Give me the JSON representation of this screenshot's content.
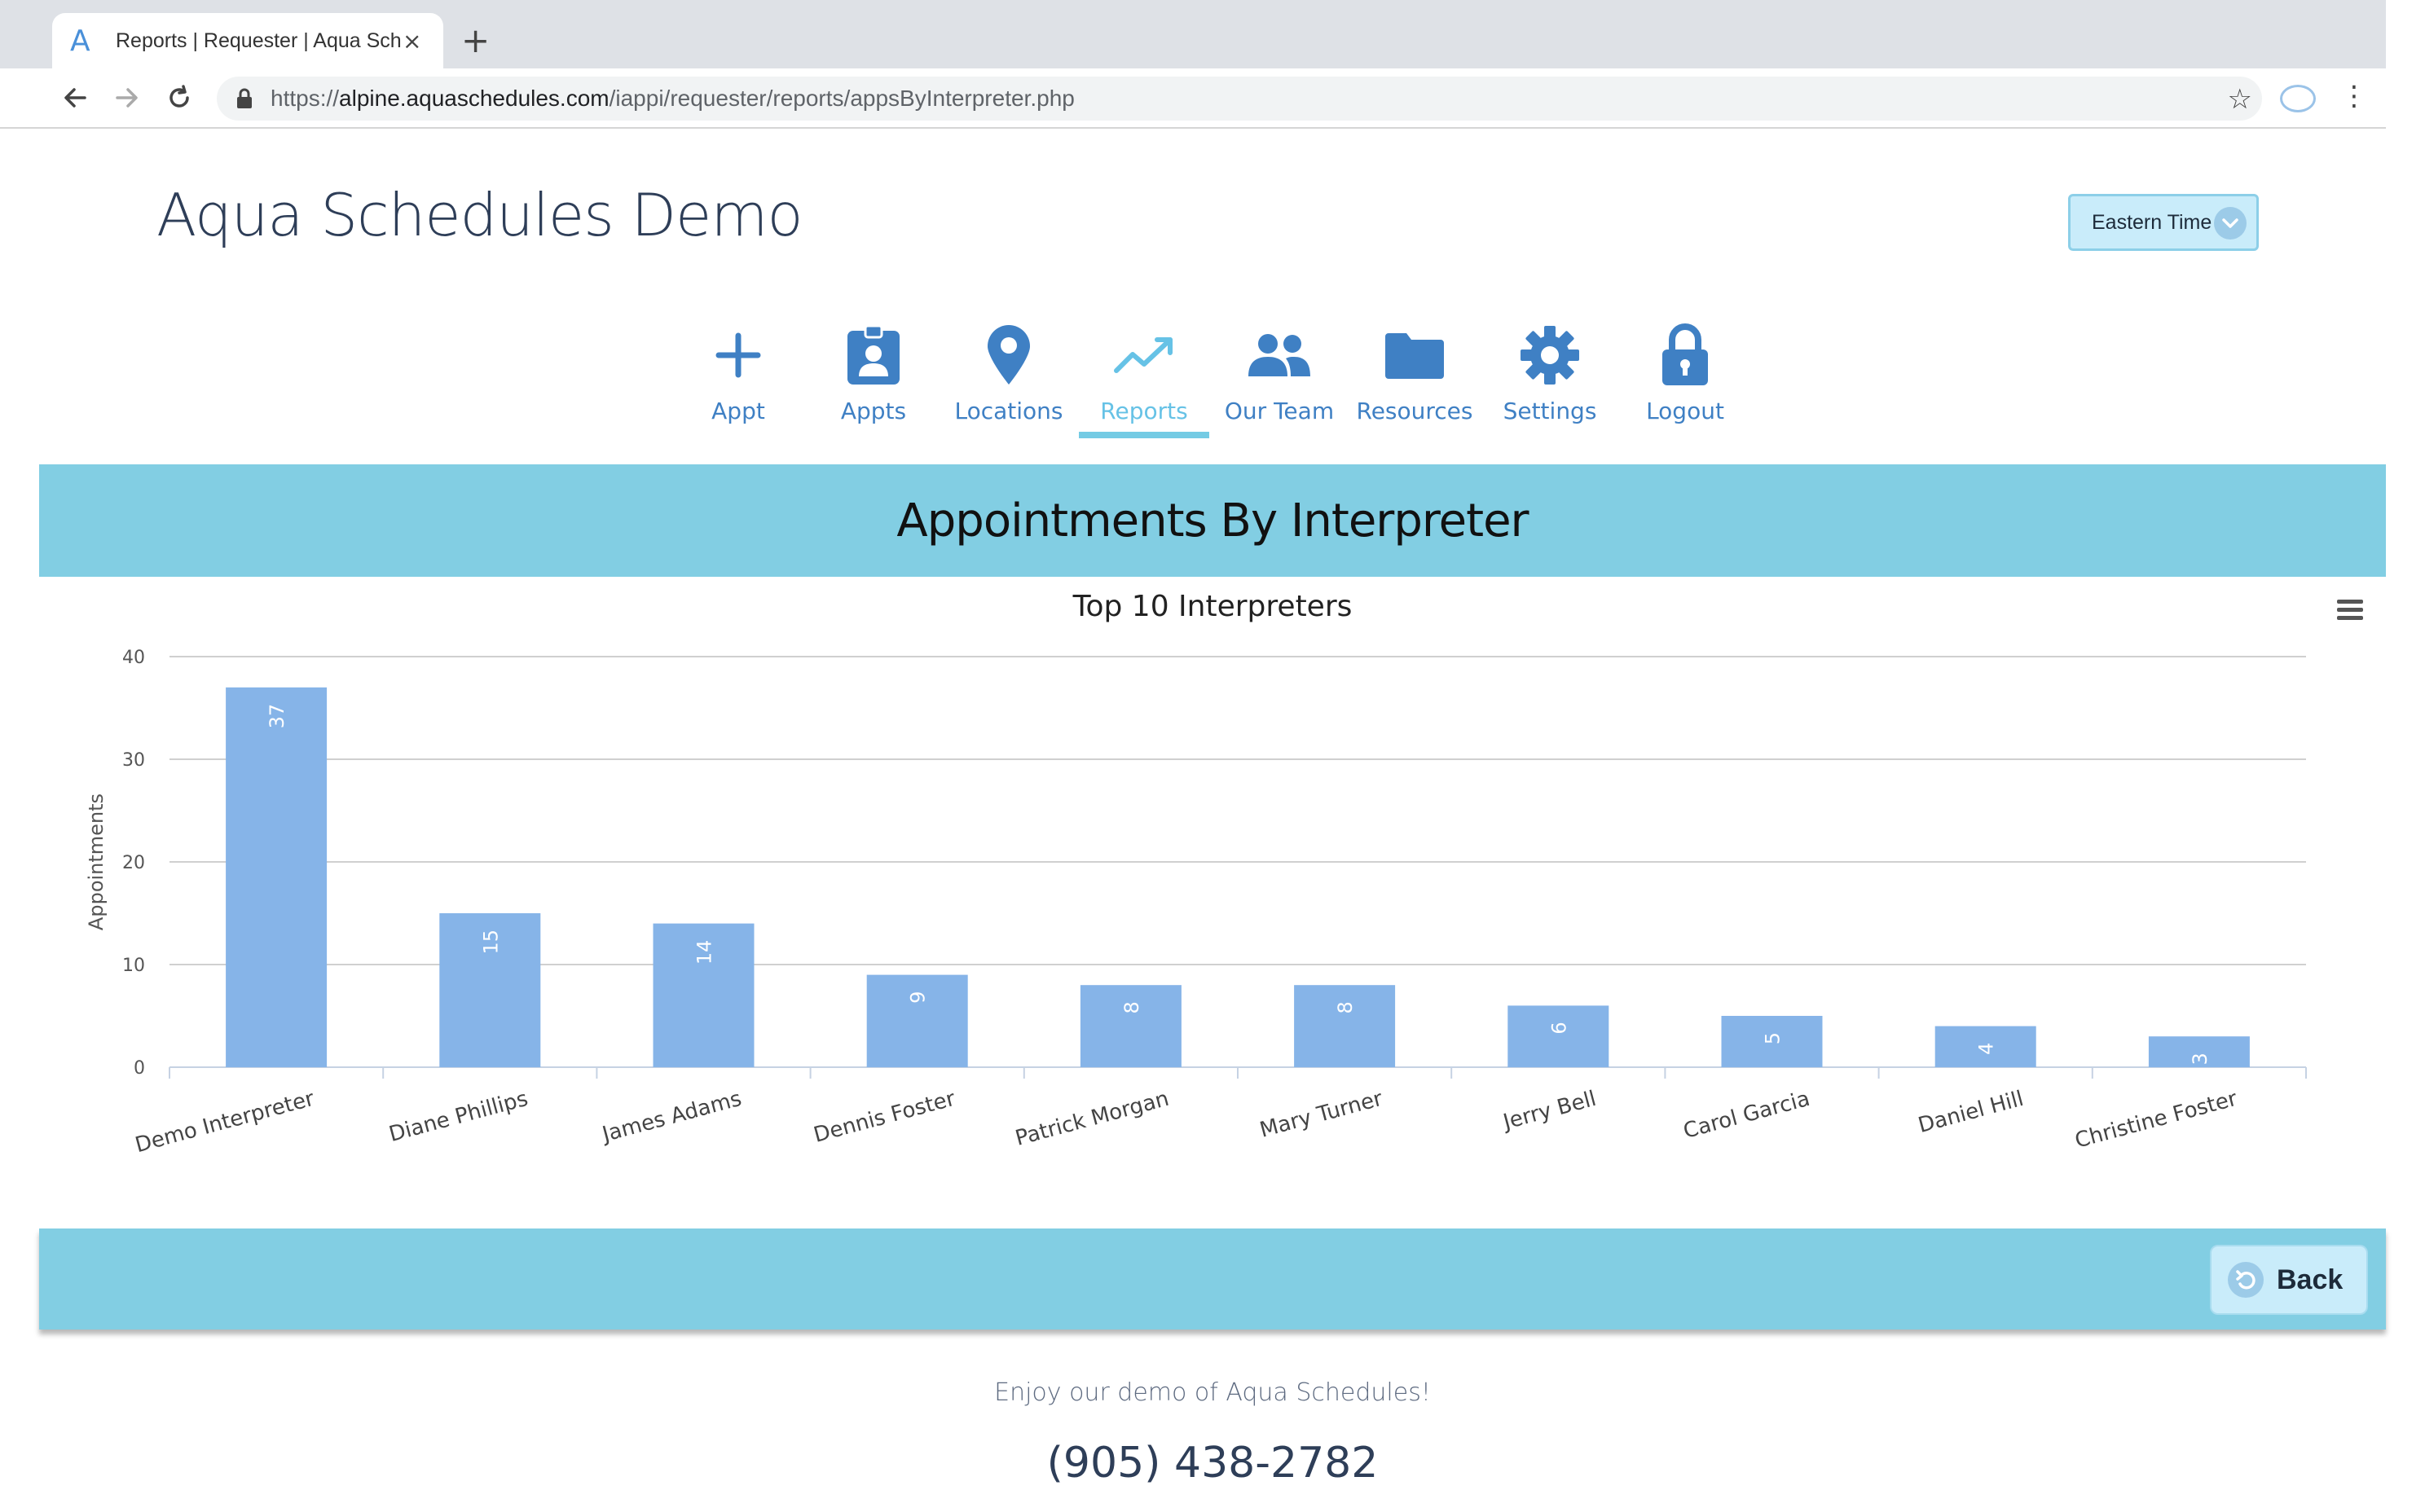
{
  "browser": {
    "tab_title": "Reports | Requester | Aqua Sch",
    "tab_favicon": "A",
    "tab_close": "×",
    "new_tab": "+",
    "url_scheme": "https://",
    "url_host": "alpine.aquaschedules.com",
    "url_path": "/iappi/requester/reports/appsByInterpreter.php",
    "icons": [
      "back-arrow-icon",
      "forward-arrow-icon",
      "reload-icon",
      "lock-icon",
      "bookmark-star-icon",
      "extension-icon",
      "more-menu-icon"
    ]
  },
  "header": {
    "app_title": "Aqua Schedules Demo",
    "timezone": "Eastern Time"
  },
  "nav": {
    "items": [
      {
        "label": "Appt",
        "icon": "plus-icon"
      },
      {
        "label": "Appts",
        "icon": "id-badge-icon"
      },
      {
        "label": "Locations",
        "icon": "map-pin-icon"
      },
      {
        "label": "Reports",
        "icon": "trend-line-icon",
        "active": true
      },
      {
        "label": "Our Team",
        "icon": "people-icon"
      },
      {
        "label": "Resources",
        "icon": "folder-icon"
      },
      {
        "label": "Settings",
        "icon": "gear-icon"
      },
      {
        "label": "Logout",
        "icon": "padlock-icon"
      }
    ],
    "accent_color": "#3f80c4",
    "active_color": "#66c2e6"
  },
  "report": {
    "title": "Appointments By Interpreter",
    "back_label": "Back",
    "band_color": "#82cee3"
  },
  "chart_data": {
    "type": "bar",
    "title": "Top 10 Interpreters",
    "xlabel": "",
    "ylabel": "Appointments",
    "categories": [
      "Demo Interpreter",
      "Diane Phillips",
      "James Adams",
      "Dennis Foster",
      "Patrick Morgan",
      "Mary Turner",
      "Jerry Bell",
      "Carol Garcia",
      "Daniel Hill",
      "Christine Foster"
    ],
    "values": [
      37,
      15,
      14,
      9,
      8,
      8,
      6,
      5,
      4,
      3
    ],
    "ylim": [
      0,
      40
    ],
    "yticks": [
      0,
      10,
      20,
      30,
      40
    ],
    "grid": true,
    "data_labels": true,
    "bar_color": "#86b4e8"
  },
  "footer": {
    "message": "Enjoy our demo of Aqua Schedules!",
    "phone": "(905) 438-2782"
  }
}
